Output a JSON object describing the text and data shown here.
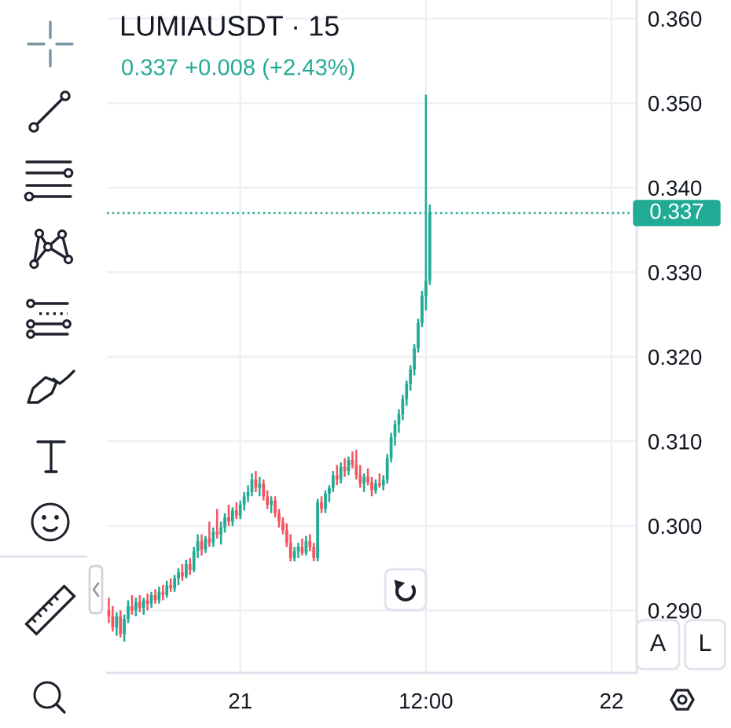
{
  "chart_data": {
    "type": "candlestick",
    "title": "LUMIAUSDT · 15",
    "subtitle": "0.337 +0.008 (+2.43%)",
    "categories": [
      null,
      null,
      null,
      null,
      null,
      null,
      null,
      null,
      null,
      null,
      null,
      null,
      null,
      null,
      null,
      null,
      null,
      null,
      null,
      null,
      null,
      null,
      null,
      null,
      null,
      null,
      null,
      null,
      null,
      null,
      null,
      null,
      null,
      null,
      "21",
      null,
      null,
      null,
      null,
      null,
      null,
      null,
      null,
      null,
      null,
      null,
      null,
      null,
      null,
      null,
      null,
      null,
      null,
      null,
      null,
      null,
      null,
      null,
      null,
      null,
      null,
      null,
      null,
      null,
      null,
      null,
      null,
      null,
      null,
      null,
      null,
      null,
      null,
      null,
      null,
      null,
      null,
      null,
      null,
      null,
      null,
      null,
      "12:00",
      null,
      null,
      null,
      null,
      null,
      null,
      null,
      null,
      null,
      null,
      null,
      null,
      null,
      null,
      null,
      null,
      null,
      null,
      null,
      null,
      null,
      null,
      null,
      null,
      null,
      null,
      null,
      null,
      null,
      null,
      null,
      null,
      null,
      null,
      null,
      null,
      null,
      null,
      null,
      null,
      null,
      null,
      null,
      null,
      null,
      null,
      null,
      "22",
      null,
      null,
      null,
      null,
      null,
      null
    ],
    "ohlc": [
      [
        0.29,
        0.2915,
        0.2885,
        0.2893
      ],
      [
        0.2893,
        0.2905,
        0.2875,
        0.288
      ],
      [
        0.288,
        0.2898,
        0.287,
        0.2893
      ],
      [
        0.2893,
        0.29,
        0.2868,
        0.2872
      ],
      [
        0.2872,
        0.2895,
        0.2863,
        0.289
      ],
      [
        0.289,
        0.2912,
        0.2885,
        0.2905
      ],
      [
        0.2905,
        0.2918,
        0.2895,
        0.29
      ],
      [
        0.29,
        0.2915,
        0.2893,
        0.291
      ],
      [
        0.291,
        0.2918,
        0.2898,
        0.2903
      ],
      [
        0.2903,
        0.2915,
        0.2895,
        0.2912
      ],
      [
        0.2912,
        0.292,
        0.29,
        0.2908
      ],
      [
        0.2908,
        0.2922,
        0.2903,
        0.2918
      ],
      [
        0.2918,
        0.2925,
        0.2908,
        0.2912
      ],
      [
        0.2912,
        0.2928,
        0.2908,
        0.2922
      ],
      [
        0.2922,
        0.293,
        0.2912,
        0.2918
      ],
      [
        0.2918,
        0.2935,
        0.2915,
        0.293
      ],
      [
        0.293,
        0.2938,
        0.2922,
        0.2926
      ],
      [
        0.2926,
        0.2942,
        0.2922,
        0.2938
      ],
      [
        0.2938,
        0.295,
        0.293,
        0.2945
      ],
      [
        0.2945,
        0.2955,
        0.2935,
        0.294
      ],
      [
        0.294,
        0.296,
        0.2938,
        0.2955
      ],
      [
        0.2955,
        0.2962,
        0.2942,
        0.2948
      ],
      [
        0.2948,
        0.2975,
        0.2945,
        0.297
      ],
      [
        0.297,
        0.299,
        0.2962,
        0.2982
      ],
      [
        0.2982,
        0.299,
        0.2965,
        0.2972
      ],
      [
        0.2972,
        0.2988,
        0.2968,
        0.2985
      ],
      [
        0.2985,
        0.3005,
        0.2975,
        0.298
      ],
      [
        0.298,
        0.2998,
        0.2975,
        0.2993
      ],
      [
        0.2993,
        0.302,
        0.2985,
        0.299
      ],
      [
        0.299,
        0.3005,
        0.2978,
        0.2998
      ],
      [
        0.2998,
        0.3015,
        0.2992,
        0.301
      ],
      [
        0.301,
        0.3025,
        0.3,
        0.3005
      ],
      [
        0.3005,
        0.3022,
        0.3,
        0.3018
      ],
      [
        0.3018,
        0.3028,
        0.3008,
        0.3012
      ],
      [
        0.3012,
        0.303,
        0.3008,
        0.3025
      ],
      [
        0.3025,
        0.304,
        0.3018,
        0.3035
      ],
      [
        0.3035,
        0.3048,
        0.3028,
        0.304
      ],
      [
        0.304,
        0.3062,
        0.3035,
        0.3055
      ],
      [
        0.3055,
        0.3065,
        0.304,
        0.3045
      ],
      [
        0.3045,
        0.3058,
        0.3035,
        0.305
      ],
      [
        0.305,
        0.3055,
        0.303,
        0.3035
      ],
      [
        0.3035,
        0.3042,
        0.302,
        0.3025
      ],
      [
        0.3025,
        0.3035,
        0.3015,
        0.303
      ],
      [
        0.303,
        0.3035,
        0.301,
        0.3015
      ],
      [
        0.3015,
        0.302,
        0.2998,
        0.3005
      ],
      [
        0.3005,
        0.301,
        0.299,
        0.2995
      ],
      [
        0.2995,
        0.3003,
        0.2975,
        0.298
      ],
      [
        0.298,
        0.299,
        0.2958,
        0.2962
      ],
      [
        0.2962,
        0.2975,
        0.2958,
        0.297
      ],
      [
        0.297,
        0.298,
        0.2962,
        0.2975
      ],
      [
        0.2975,
        0.2985,
        0.2965,
        0.2968
      ],
      [
        0.2968,
        0.2988,
        0.2965,
        0.2982
      ],
      [
        0.2982,
        0.299,
        0.297,
        0.2975
      ],
      [
        0.2975,
        0.298,
        0.2958,
        0.2962
      ],
      [
        0.2962,
        0.3032,
        0.2958,
        0.3028
      ],
      [
        0.3028,
        0.3035,
        0.3015,
        0.302
      ],
      [
        0.302,
        0.3042,
        0.3015,
        0.3038
      ],
      [
        0.3038,
        0.3048,
        0.3028,
        0.3045
      ],
      [
        0.3045,
        0.3065,
        0.304,
        0.306
      ],
      [
        0.306,
        0.3072,
        0.3048,
        0.3055
      ],
      [
        0.3055,
        0.3075,
        0.305,
        0.307
      ],
      [
        0.307,
        0.308,
        0.3058,
        0.3065
      ],
      [
        0.3065,
        0.3082,
        0.306,
        0.3078
      ],
      [
        0.3078,
        0.3088,
        0.3068,
        0.3072
      ],
      [
        0.3072,
        0.309,
        0.3055,
        0.306
      ],
      [
        0.306,
        0.3072,
        0.3045,
        0.305
      ],
      [
        0.305,
        0.3062,
        0.304,
        0.3058
      ],
      [
        0.3058,
        0.3068,
        0.3048,
        0.3052
      ],
      [
        0.3052,
        0.3058,
        0.3035,
        0.3042
      ],
      [
        0.3042,
        0.3055,
        0.3038,
        0.305
      ],
      [
        0.305,
        0.3062,
        0.3045,
        0.3048
      ],
      [
        0.3048,
        0.306,
        0.3042,
        0.3055
      ],
      [
        0.3055,
        0.3085,
        0.305,
        0.308
      ],
      [
        0.308,
        0.311,
        0.3075,
        0.3105
      ],
      [
        0.3105,
        0.3125,
        0.3095,
        0.312
      ],
      [
        0.312,
        0.3138,
        0.311,
        0.3132
      ],
      [
        0.3132,
        0.3155,
        0.3125,
        0.315
      ],
      [
        0.315,
        0.3172,
        0.3142,
        0.3168
      ],
      [
        0.3168,
        0.319,
        0.316,
        0.3185
      ],
      [
        0.3185,
        0.3215,
        0.3178,
        0.321
      ],
      [
        0.321,
        0.3245,
        0.3205,
        0.324
      ],
      [
        0.324,
        0.3278,
        0.3235,
        0.3272
      ],
      [
        0.3272,
        0.351,
        0.3255,
        0.329
      ],
      [
        0.329,
        0.338,
        0.3285,
        0.337
      ],
      null,
      null,
      null,
      null,
      null,
      null,
      null,
      null,
      null,
      null,
      null,
      null,
      null,
      null,
      null,
      null,
      null,
      null,
      null,
      null,
      null,
      null,
      null,
      null,
      null,
      null,
      null,
      null,
      null,
      null,
      null,
      null,
      null,
      null,
      null,
      null,
      null,
      null,
      null,
      null,
      null,
      null,
      null,
      null,
      null,
      null,
      null,
      null,
      null,
      null,
      null,
      null,
      null
    ],
    "colors": [
      "#f7525f",
      "#f7525f",
      "#22ab94",
      "#f7525f",
      "#22ab94",
      "#22ab94",
      "#f7525f",
      "#22ab94",
      "#f7525f",
      "#22ab94",
      "#f7525f",
      "#22ab94",
      "#f7525f",
      "#22ab94",
      "#f7525f",
      "#22ab94",
      "#f7525f",
      "#22ab94",
      "#22ab94",
      "#f7525f",
      "#22ab94",
      "#f7525f",
      "#22ab94",
      "#22ab94",
      "#f7525f",
      "#22ab94",
      "#f7525f",
      "#22ab94",
      "#f7525f",
      "#22ab94",
      "#22ab94",
      "#f7525f",
      "#22ab94",
      "#f7525f",
      "#22ab94",
      "#22ab94",
      "#22ab94",
      "#22ab94",
      "#f7525f",
      "#22ab94",
      "#f7525f",
      "#f7525f",
      "#22ab94",
      "#f7525f",
      "#f7525f",
      "#f7525f",
      "#f7525f",
      "#f7525f",
      "#22ab94",
      "#22ab94",
      "#f7525f",
      "#22ab94",
      "#f7525f",
      "#f7525f",
      "#22ab94",
      "#f7525f",
      "#22ab94",
      "#22ab94",
      "#22ab94",
      "#f7525f",
      "#22ab94",
      "#f7525f",
      "#22ab94",
      "#f7525f",
      "#f7525f",
      "#f7525f",
      "#22ab94",
      "#f7525f",
      "#f7525f",
      "#22ab94",
      "#f7525f",
      "#22ab94",
      "#22ab94",
      "#22ab94",
      "#22ab94",
      "#22ab94",
      "#22ab94",
      "#22ab94",
      "#22ab94",
      "#22ab94",
      "#22ab94",
      "#22ab94",
      "#22ab94",
      "#22ab94",
      null,
      null,
      null,
      null,
      null,
      null,
      null,
      null,
      null,
      null,
      null,
      null,
      null,
      null,
      null,
      null,
      null,
      null,
      null,
      null,
      null,
      null,
      null,
      null,
      null,
      null,
      null,
      null,
      null,
      null,
      null,
      null,
      null,
      null,
      null,
      null,
      null,
      null,
      null,
      null,
      null,
      null,
      null,
      null,
      null,
      null,
      null,
      null,
      null,
      null,
      null,
      null,
      null
    ],
    "ylim": [
      0.2826,
      0.3622
    ],
    "yticks": [
      {
        "value": 0.29,
        "label": "0.290"
      },
      {
        "value": 0.3,
        "label": "0.300"
      },
      {
        "value": 0.31,
        "label": "0.310"
      },
      {
        "value": 0.32,
        "label": "0.320"
      },
      {
        "value": 0.33,
        "label": "0.330"
      },
      {
        "value": 0.34,
        "label": "0.340"
      },
      {
        "value": 0.35,
        "label": "0.350"
      },
      {
        "value": 0.36,
        "label": "0.360"
      }
    ],
    "grid": true,
    "ref_lines": [
      {
        "axis": "y",
        "value": 0.337,
        "label": "0.337",
        "color": "#22ab94",
        "line_style": "dotted"
      }
    ],
    "annotations": [
      "A",
      "L"
    ]
  }
}
